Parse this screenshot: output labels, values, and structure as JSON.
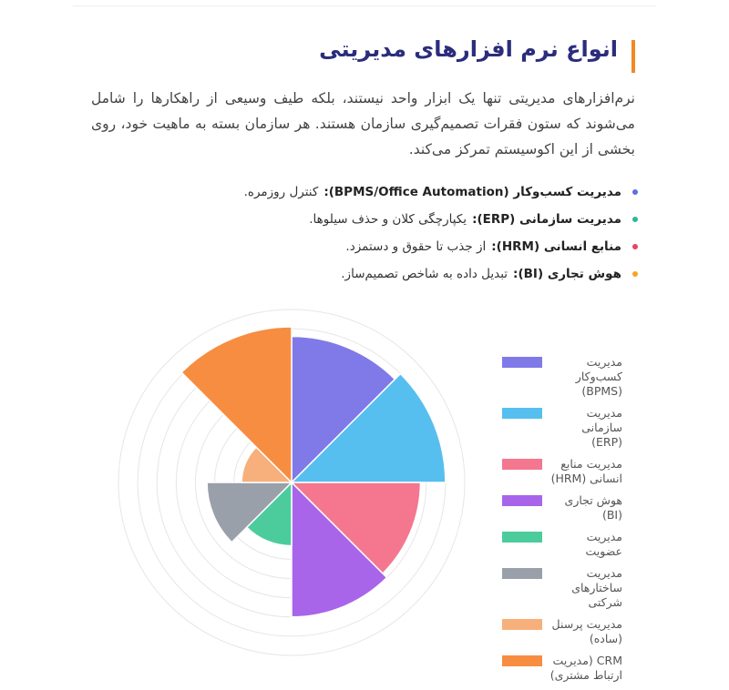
{
  "heading": "انواع نرم افزارهای مدیریتی",
  "paragraph": "نرم‌افزارهای مدیریتی تنها یک ابزار واحد نیستند، بلکه طیف وسیعی از راهکارها را شامل می‌شوند که ستون فقرات تصمیم‌گیری سازمان هستند. هر سازمان بسته به ماهیت خود، روی بخشی از این اکوسیستم تمرکز می‌کند.",
  "bullets": [
    {
      "term": "مدیریت کسب‌وکار (BPMS/Office Automation):",
      "desc": "کنترل روزمره.",
      "color": "#5b6ee8"
    },
    {
      "term": "مدیریت سازمانی (ERP):",
      "desc": "یکپارچگی کلان و حذف سیلوها.",
      "color": "#2bb89a"
    },
    {
      "term": "منابع انسانی (HRM):",
      "desc": "از جذب تا حقوق و دستمزد.",
      "color": "#e8455f"
    },
    {
      "term": "هوش تجاری (BI):",
      "desc": "تبدیل داده به شاخص تصمیم‌ساز.",
      "color": "#f5a623"
    }
  ],
  "chart_data": {
    "type": "polarArea",
    "categories": [
      "مدیریت کسب‌وکار (BPMS)",
      "مدیریت سازمانی (ERP)",
      "مدیریت منابع انسانی (HRM)",
      "هوش تجاری (BI)",
      "مدیریت عضویت",
      "مدیریت ساختارهای شرکتی",
      "مدیریت پرسنل (ساده)",
      "CRM (مدیریت ارتباط مشتری)"
    ],
    "values": [
      7.6,
      8,
      6.7,
      7,
      3.3,
      4.4,
      2.6,
      8.1
    ],
    "colors": [
      "#8079e8",
      "#56bfef",
      "#f4778f",
      "#a865ea",
      "#4ccc9d",
      "#9aa0aa",
      "#f7b07c",
      "#f78d40"
    ],
    "rlim": [
      0,
      9
    ],
    "rticks": [
      1,
      2,
      3,
      4,
      5,
      6,
      7,
      8,
      9
    ],
    "grid": true,
    "legend": "right"
  }
}
